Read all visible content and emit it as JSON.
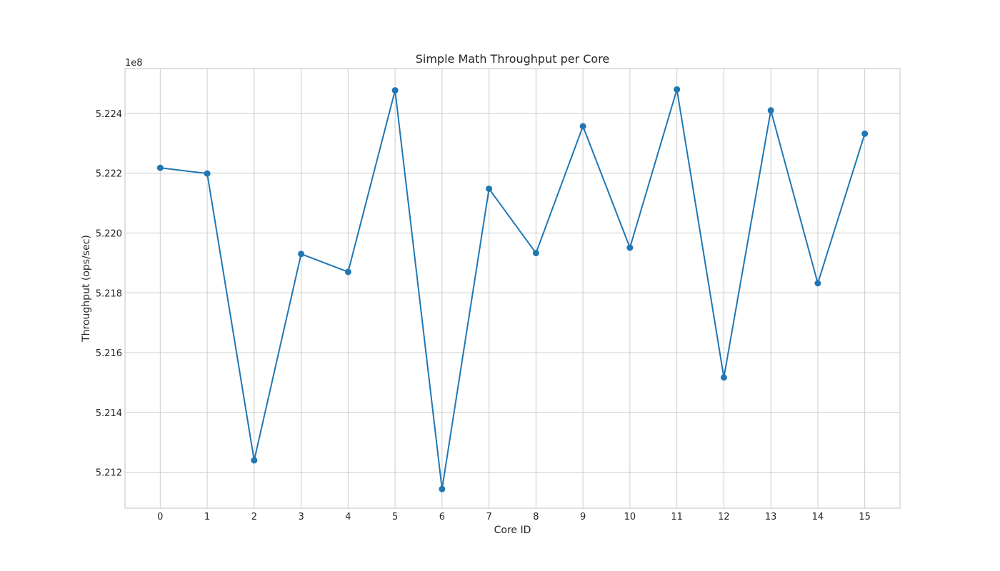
{
  "chart_data": {
    "type": "line",
    "title": "Simple Math Throughput per Core",
    "xlabel": "Core ID",
    "ylabel": "Throughput (ops/sec)",
    "y_offset_text": "1e8",
    "x": [
      0,
      1,
      2,
      3,
      4,
      5,
      6,
      7,
      8,
      9,
      10,
      11,
      12,
      13,
      14,
      15
    ],
    "x_tick_labels": [
      "0",
      "1",
      "2",
      "3",
      "4",
      "5",
      "6",
      "7",
      "8",
      "9",
      "10",
      "11",
      "12",
      "13",
      "14",
      "15"
    ],
    "y_ticks": [
      5.212,
      5.214,
      5.216,
      5.218,
      5.22,
      5.222,
      5.224
    ],
    "y_tick_labels": [
      "5.212",
      "5.214",
      "5.216",
      "5.218",
      "5.220",
      "5.222",
      "5.224"
    ],
    "xlim": [
      -0.75,
      15.75
    ],
    "ylim": [
      5.2108,
      5.2255
    ],
    "grid": true,
    "series": [
      {
        "color": "#1f77b4",
        "marker": "circle",
        "values": [
          5.22218,
          5.22199,
          5.2124,
          5.2193,
          5.2187,
          5.22477,
          5.21144,
          5.22148,
          5.21933,
          5.22357,
          5.21951,
          5.2248,
          5.21517,
          5.2241,
          5.21832,
          5.22332
        ]
      }
    ]
  }
}
